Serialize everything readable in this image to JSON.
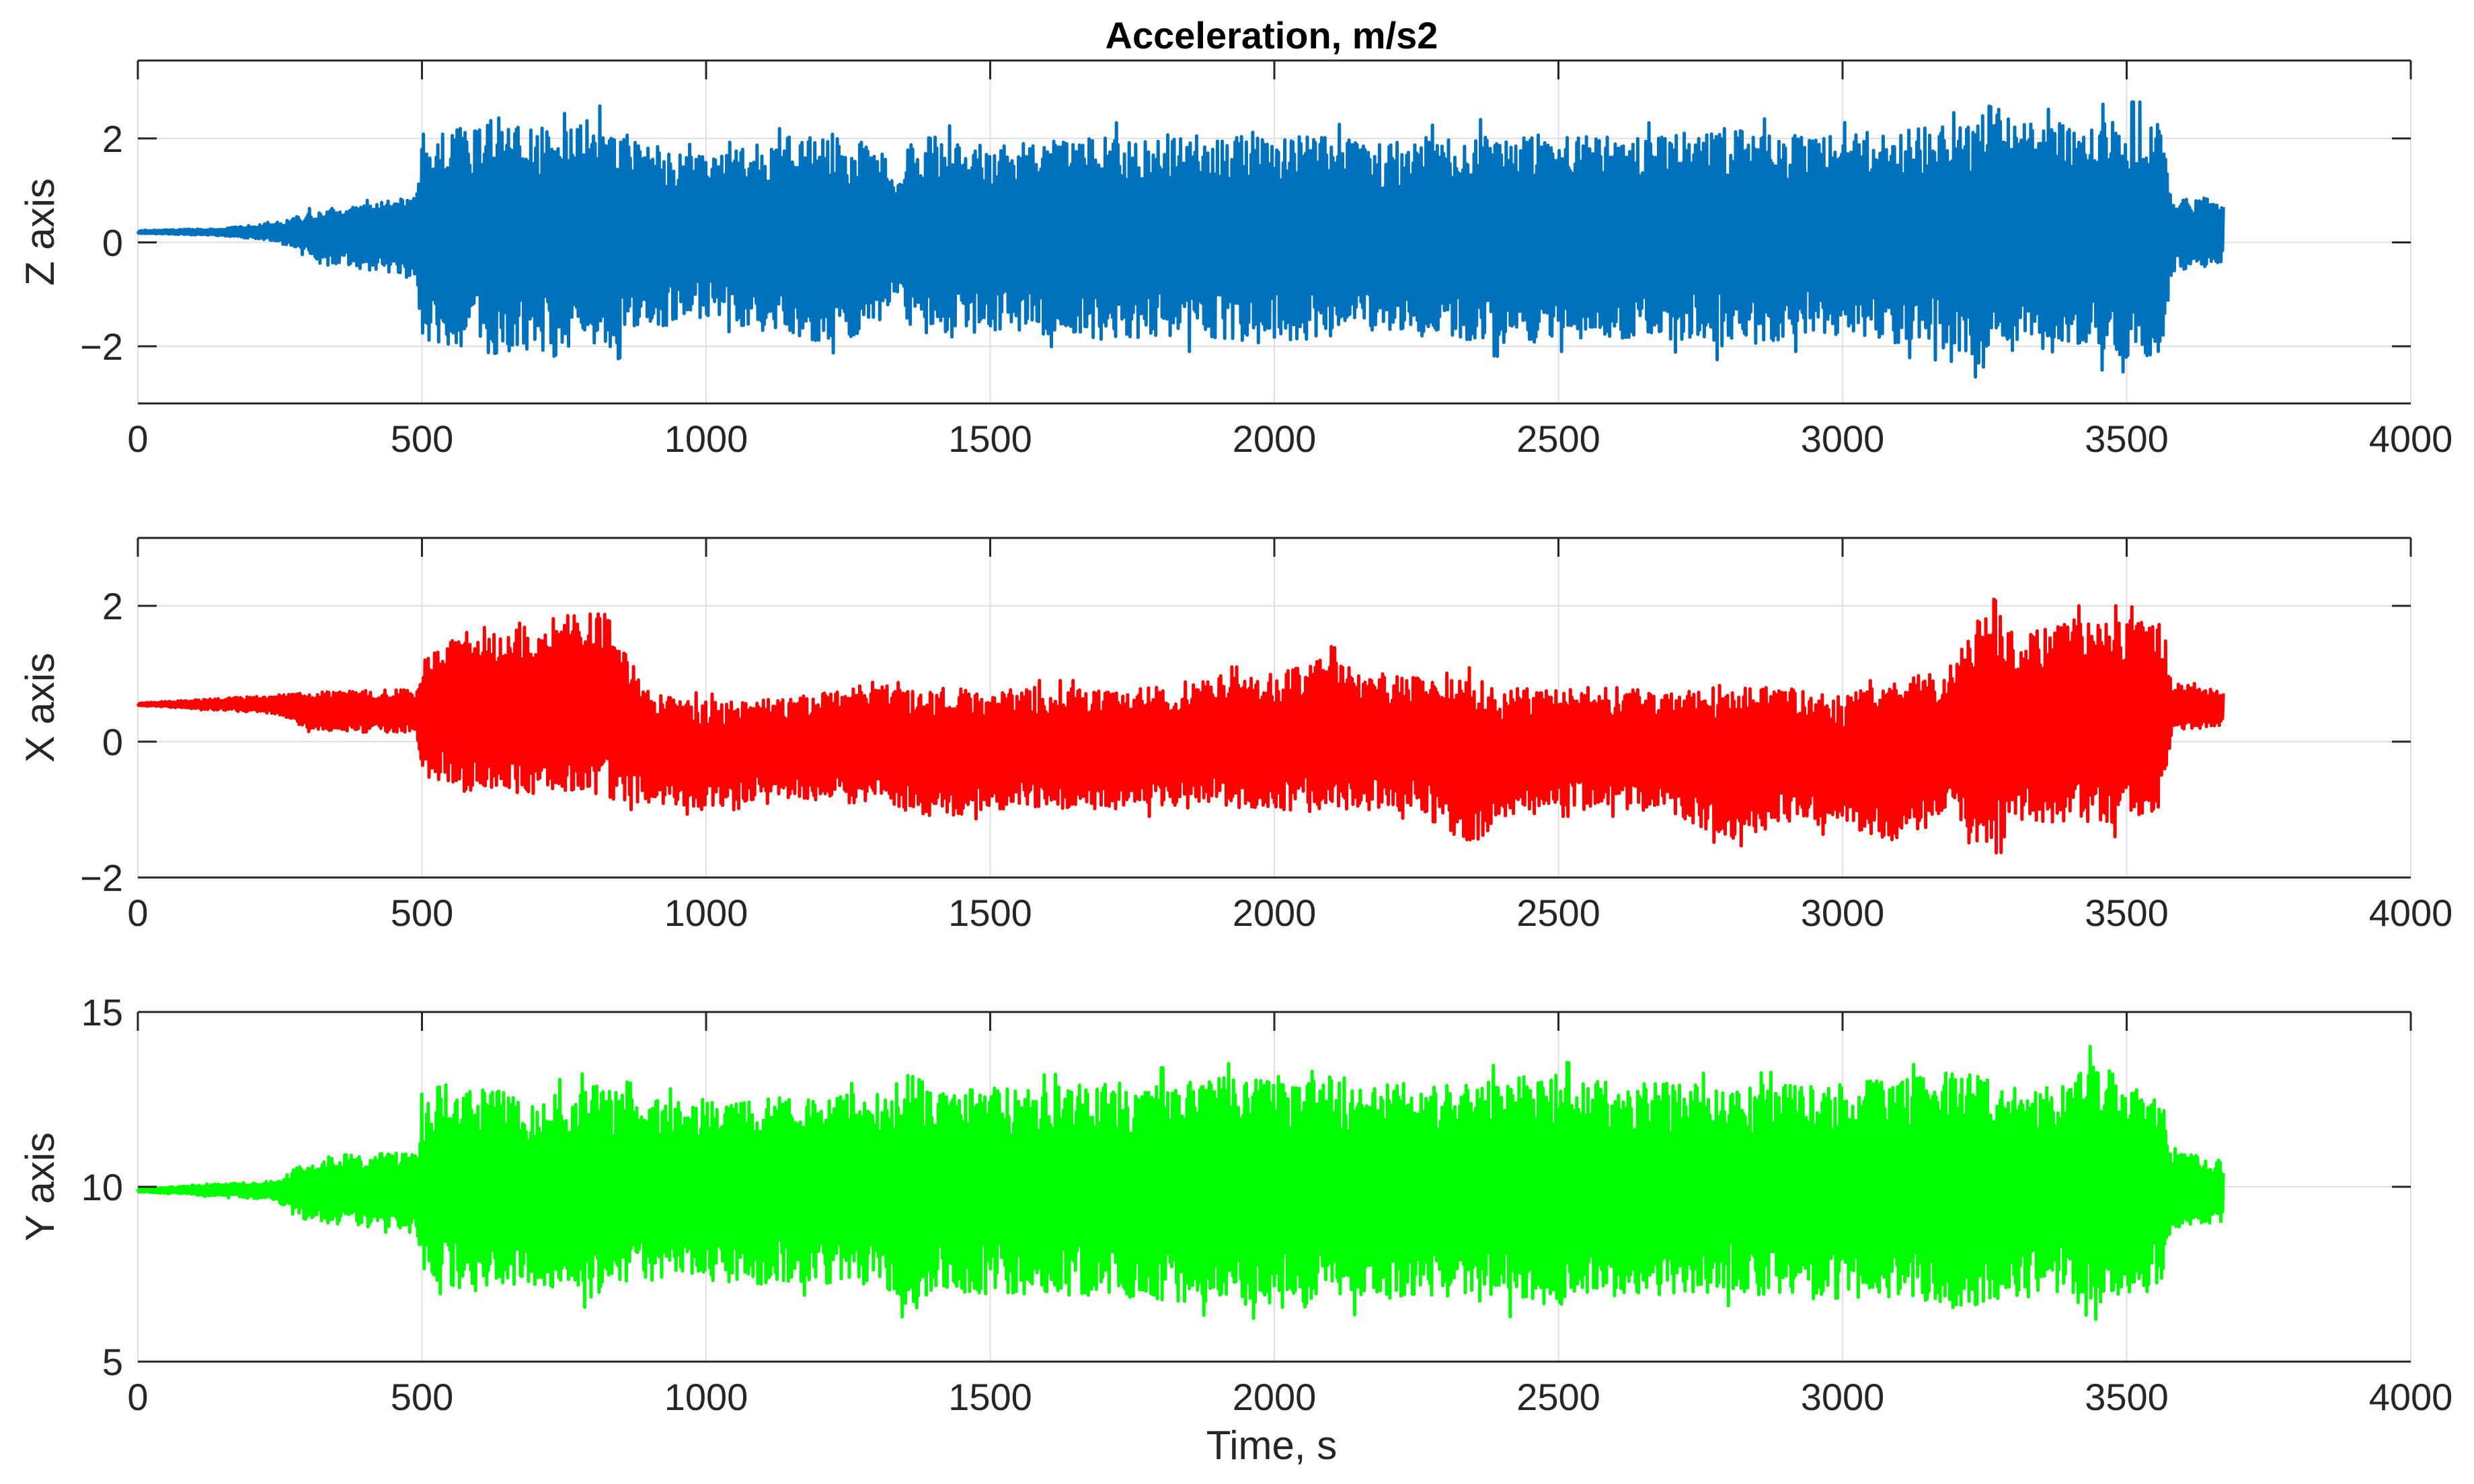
{
  "figure": {
    "title": "Acceleration, m/s2",
    "xlabel": "Time, s"
  },
  "chart_data": [
    {
      "type": "line",
      "title": "Acceleration, m/s2",
      "xlabel": "",
      "ylabel": "Z axis",
      "xlim": [
        0,
        4000
      ],
      "ylim": [
        -3.1,
        3.5
      ],
      "xticks": [
        0,
        500,
        1000,
        1500,
        2000,
        2500,
        3000,
        3500,
        4000
      ],
      "xticklabels": [
        "0",
        "500",
        "1000",
        "1500",
        "2000",
        "2500",
        "3000",
        "3500",
        "4000"
      ],
      "yticks": [
        -2,
        0,
        2
      ],
      "yticklabels": [
        "−2",
        "0",
        "2"
      ],
      "grid": true,
      "color": "#0072BD",
      "series": [
        {
          "x": [
            0,
            150,
            240,
            300,
            400,
            490,
            500,
            600,
            650,
            700,
            760,
            820,
            900,
            1000,
            1100,
            1200,
            1300,
            1345,
            1355,
            1400,
            1500,
            1600,
            1700,
            1800,
            1900,
            2000,
            2100,
            2200,
            2300,
            2400,
            2500,
            2600,
            2700,
            2800,
            2900,
            3000,
            3100,
            3200,
            3270,
            3300,
            3400,
            3500,
            3560,
            3580,
            3600,
            3650,
            3670
          ],
          "center": [
            0.2,
            0.2,
            0.2,
            0.15,
            0.1,
            0.1,
            0.1,
            0.1,
            0.1,
            0.1,
            0.1,
            0.1,
            0.1,
            0.1,
            0.1,
            0.1,
            0.1,
            0.1,
            0.1,
            0.1,
            0.1,
            0.1,
            0.1,
            0.1,
            0.1,
            0.1,
            0.1,
            0.1,
            0.1,
            0.1,
            0.1,
            0.1,
            0.1,
            0.1,
            0.1,
            0.1,
            0.1,
            0.1,
            0.1,
            0.1,
            0.1,
            0.1,
            0.1,
            0.15,
            0.15,
            0.15,
            0.15
          ],
          "amplitude": [
            0.03,
            0.08,
            0.2,
            0.5,
            0.7,
            0.9,
            2.2,
            2.4,
            2.7,
            2.4,
            2.7,
            2.5,
            2.0,
            1.7,
            2.0,
            2.3,
            2.0,
            1.1,
            2.0,
            2.2,
            2.0,
            2.1,
            2.2,
            2.2,
            2.2,
            2.3,
            2.2,
            2.0,
            2.2,
            2.3,
            2.2,
            2.2,
            2.2,
            2.4,
            2.2,
            2.2,
            2.3,
            2.4,
            3.0,
            2.4,
            2.5,
            2.6,
            2.6,
            0.8,
            0.8,
            0.8,
            0.6
          ]
        }
      ]
    },
    {
      "type": "line",
      "title": "",
      "xlabel": "",
      "ylabel": "X axis",
      "xlim": [
        0,
        4000
      ],
      "ylim": [
        -2,
        3
      ],
      "xticks": [
        0,
        500,
        1000,
        1500,
        2000,
        2500,
        3000,
        3500,
        4000
      ],
      "xticklabels": [
        "0",
        "500",
        "1000",
        "1500",
        "2000",
        "2500",
        "3000",
        "3500",
        "4000"
      ],
      "yticks": [
        -2,
        0,
        2
      ],
      "yticklabels": [
        "−2",
        "0",
        "2"
      ],
      "grid": true,
      "color": "#FF0000",
      "series": [
        {
          "x": [
            0,
            240,
            300,
            400,
            490,
            500,
            600,
            700,
            800,
            830,
            900,
            1000,
            1100,
            1200,
            1300,
            1400,
            1500,
            1600,
            1700,
            1800,
            1900,
            2000,
            2100,
            2200,
            2300,
            2350,
            2400,
            2500,
            2600,
            2700,
            2800,
            2900,
            3000,
            3100,
            3200,
            3270,
            3300,
            3400,
            3500,
            3560,
            3580,
            3670
          ],
          "center": [
            0.55,
            0.55,
            0.45,
            0.45,
            0.45,
            0.4,
            0.45,
            0.5,
            0.6,
            0.5,
            -0.1,
            -0.2,
            -0.1,
            -0.1,
            0.0,
            -0.15,
            -0.1,
            -0.1,
            -0.1,
            -0.1,
            0.0,
            0.0,
            0.1,
            0.0,
            -0.1,
            -0.3,
            -0.2,
            -0.1,
            -0.1,
            -0.15,
            -0.3,
            -0.2,
            -0.3,
            -0.3,
            0.1,
            0.2,
            0.2,
            0.3,
            0.3,
            0.4,
            0.5,
            0.5
          ],
          "amplitude": [
            0.02,
            0.15,
            0.3,
            0.35,
            0.35,
            1.0,
            1.4,
            1.4,
            1.5,
            1.5,
            0.9,
            0.9,
            0.8,
            0.9,
            1.0,
            1.1,
            1.0,
            1.0,
            1.0,
            1.0,
            1.1,
            1.1,
            1.3,
            1.1,
            1.1,
            1.4,
            1.1,
            1.0,
            1.0,
            1.0,
            1.3,
            1.1,
            1.1,
            1.3,
            1.3,
            2.3,
            1.5,
            1.7,
            1.7,
            1.5,
            0.4,
            0.3
          ]
        }
      ]
    },
    {
      "type": "line",
      "title": "",
      "xlabel": "Time, s",
      "ylabel": "Y axis",
      "xlim": [
        0,
        4000
      ],
      "ylim": [
        5,
        15
      ],
      "xticks": [
        0,
        500,
        1000,
        1500,
        2000,
        2500,
        3000,
        3500,
        4000
      ],
      "xticklabels": [
        "0",
        "500",
        "1000",
        "1500",
        "2000",
        "2500",
        "3000",
        "3500",
        "4000"
      ],
      "yticks": [
        5,
        10,
        15
      ],
      "yticklabels": [
        "5",
        "10",
        "15"
      ],
      "grid": true,
      "color": "#00FF00",
      "series": [
        {
          "x": [
            0,
            240,
            300,
            400,
            490,
            500,
            600,
            700,
            800,
            900,
            1000,
            1100,
            1200,
            1300,
            1370,
            1400,
            1500,
            1600,
            1700,
            1800,
            1900,
            2000,
            2070,
            2100,
            2200,
            2300,
            2400,
            2500,
            2600,
            2700,
            2800,
            2900,
            3000,
            3100,
            3200,
            3300,
            3400,
            3440,
            3500,
            3560,
            3580,
            3670
          ],
          "center": [
            9.9,
            9.9,
            9.9,
            9.9,
            9.9,
            9.9,
            9.9,
            9.9,
            9.9,
            9.9,
            9.9,
            9.9,
            9.9,
            9.9,
            9.9,
            9.9,
            9.9,
            9.9,
            9.9,
            9.9,
            9.9,
            9.9,
            9.9,
            9.9,
            9.9,
            9.9,
            9.9,
            9.9,
            9.9,
            9.9,
            9.9,
            9.9,
            9.9,
            9.9,
            9.9,
            9.9,
            9.9,
            9.9,
            9.9,
            9.9,
            9.9,
            9.9
          ],
          "amplitude": [
            0.05,
            0.3,
            1.0,
            1.2,
            1.2,
            2.8,
            3.3,
            3.0,
            3.4,
            2.9,
            2.9,
            3.0,
            3.0,
            3.1,
            3.9,
            3.2,
            3.3,
            3.3,
            3.4,
            3.5,
            3.6,
            3.7,
            3.8,
            3.6,
            3.5,
            3.4,
            3.6,
            3.7,
            3.4,
            3.4,
            3.3,
            3.4,
            3.5,
            3.5,
            3.9,
            3.4,
            3.4,
            4.2,
            3.4,
            3.2,
            1.2,
            1.0
          ]
        }
      ]
    }
  ]
}
